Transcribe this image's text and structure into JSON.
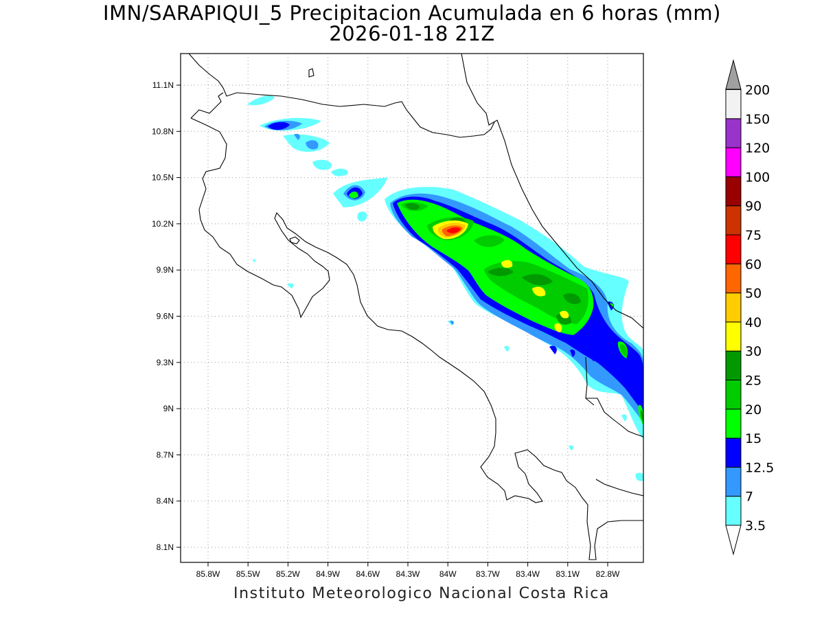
{
  "title": {
    "line1": "IMN/SARAPIQUI_5 Precipitacion Acumulada en 6 horas (mm)",
    "line2": "2026-01-18 21Z"
  },
  "footer": "Instituto Meteorologico Nacional Costa Rica",
  "map": {
    "lat_labels": [
      "11.1N",
      "10.8N",
      "10.5N",
      "10.2N",
      "9.9N",
      "9.6N",
      "9.3N",
      "9N",
      "8.7N",
      "8.4N",
      "8.1N"
    ],
    "lon_labels": [
      "85.8W",
      "85.5W",
      "85.2W",
      "84.9W",
      "84.6W",
      "84.3W",
      "84W",
      "83.7W",
      "83.4W",
      "83.1W",
      "82.8W"
    ],
    "grid": "dotted"
  },
  "colorbar": {
    "levels": [
      "3.5",
      "7",
      "12.5",
      "15",
      "20",
      "25",
      "30",
      "40",
      "50",
      "60",
      "75",
      "90",
      "100",
      "120",
      "150",
      "200"
    ],
    "colors": [
      "#66ffff",
      "#3399ff",
      "#0000ff",
      "#00ff00",
      "#00cc00",
      "#009900",
      "#ffff00",
      "#ffcc00",
      "#ff6600",
      "#ff0000",
      "#cc3300",
      "#990000",
      "#ff00ff",
      "#9933cc",
      "#f2f2f2"
    ],
    "over_color": "#a0a0a0",
    "under_color": "#ffffff"
  }
}
